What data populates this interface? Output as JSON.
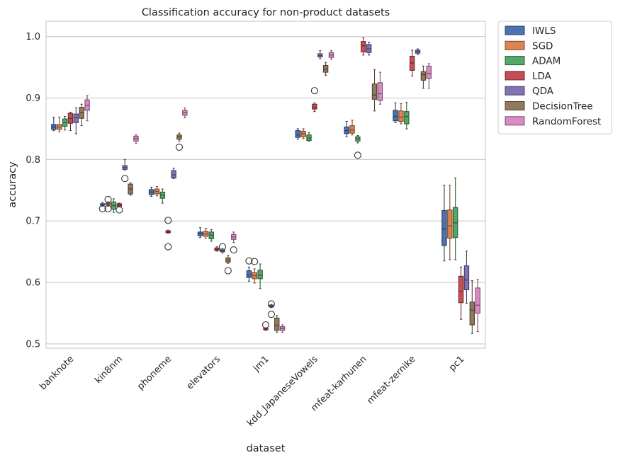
{
  "chart_data": {
    "type": "box",
    "title": "Classification accuracy for non-product datasets",
    "xlabel": "dataset",
    "ylabel": "accuracy",
    "ylim": [
      0.493,
      1.025
    ],
    "yticks": [
      "0.5",
      "0.6",
      "0.7",
      "0.8",
      "0.9",
      "1.0"
    ],
    "categories": [
      "banknote",
      "kin8nm",
      "phoneme",
      "elevators",
      "jm1",
      "kdd_JapaneseVowels",
      "mfeat-karhunen",
      "mfeat-zernike",
      "pc1"
    ],
    "grid": "horizontal",
    "legend_position": "outside-top-right",
    "series": [
      {
        "name": "IWLS",
        "color": "#4c72b0",
        "boxes": [
          {
            "cat": "banknote",
            "min": 0.847,
            "q1": 0.849,
            "median": 0.853,
            "q3": 0.857,
            "max": 0.869,
            "outliers": []
          },
          {
            "cat": "kin8nm",
            "min": 0.724,
            "q1": 0.726,
            "median": 0.727,
            "q3": 0.728,
            "max": 0.73,
            "outliers": [
              0.72
            ]
          },
          {
            "cat": "phoneme",
            "min": 0.74,
            "q1": 0.743,
            "median": 0.747,
            "q3": 0.751,
            "max": 0.755,
            "outliers": []
          },
          {
            "cat": "elevators",
            "min": 0.673,
            "q1": 0.676,
            "median": 0.679,
            "q3": 0.682,
            "max": 0.689,
            "outliers": []
          },
          {
            "cat": "jm1",
            "min": 0.602,
            "q1": 0.608,
            "median": 0.612,
            "q3": 0.619,
            "max": 0.625,
            "outliers": [
              0.635
            ]
          },
          {
            "cat": "kdd_JapaneseVowels",
            "min": 0.833,
            "q1": 0.836,
            "median": 0.84,
            "q3": 0.847,
            "max": 0.85,
            "outliers": []
          },
          {
            "cat": "mfeat-karhunen",
            "min": 0.837,
            "q1": 0.842,
            "median": 0.847,
            "q3": 0.853,
            "max": 0.862,
            "outliers": []
          },
          {
            "cat": "mfeat-zernike",
            "min": 0.86,
            "q1": 0.863,
            "median": 0.87,
            "q3": 0.88,
            "max": 0.892,
            "outliers": []
          },
          {
            "cat": "pc1",
            "min": 0.635,
            "q1": 0.66,
            "median": 0.687,
            "q3": 0.717,
            "max": 0.758,
            "outliers": []
          }
        ]
      },
      {
        "name": "SGD",
        "color": "#dd8452",
        "boxes": [
          {
            "cat": "banknote",
            "min": 0.845,
            "q1": 0.849,
            "median": 0.853,
            "q3": 0.857,
            "max": 0.869,
            "outliers": []
          },
          {
            "cat": "kin8nm",
            "min": 0.724,
            "q1": 0.726,
            "median": 0.728,
            "q3": 0.729,
            "max": 0.731,
            "outliers": [
              0.735,
              0.72
            ]
          },
          {
            "cat": "phoneme",
            "min": 0.741,
            "q1": 0.744,
            "median": 0.748,
            "q3": 0.752,
            "max": 0.756,
            "outliers": []
          },
          {
            "cat": "elevators",
            "min": 0.672,
            "q1": 0.675,
            "median": 0.679,
            "q3": 0.683,
            "max": 0.688,
            "outliers": []
          },
          {
            "cat": "jm1",
            "min": 0.599,
            "q1": 0.606,
            "median": 0.611,
            "q3": 0.616,
            "max": 0.622,
            "outliers": [
              0.634
            ]
          },
          {
            "cat": "kdd_JapaneseVowels",
            "min": 0.834,
            "q1": 0.837,
            "median": 0.842,
            "q3": 0.846,
            "max": 0.85,
            "outliers": []
          },
          {
            "cat": "mfeat-karhunen",
            "min": 0.84,
            "q1": 0.843,
            "median": 0.848,
            "q3": 0.855,
            "max": 0.864,
            "outliers": []
          },
          {
            "cat": "mfeat-zernike",
            "min": 0.858,
            "q1": 0.862,
            "median": 0.869,
            "q3": 0.879,
            "max": 0.891,
            "outliers": []
          },
          {
            "cat": "pc1",
            "min": 0.637,
            "q1": 0.672,
            "median": 0.692,
            "q3": 0.718,
            "max": 0.758,
            "outliers": []
          }
        ]
      },
      {
        "name": "ADAM",
        "color": "#55a868",
        "boxes": [
          {
            "cat": "banknote",
            "min": 0.848,
            "q1": 0.854,
            "median": 0.86,
            "q3": 0.866,
            "max": 0.87,
            "outliers": []
          },
          {
            "cat": "kin8nm",
            "min": 0.714,
            "q1": 0.719,
            "median": 0.725,
            "q3": 0.731,
            "max": 0.736,
            "outliers": []
          },
          {
            "cat": "phoneme",
            "min": 0.729,
            "q1": 0.737,
            "median": 0.742,
            "q3": 0.747,
            "max": 0.752,
            "outliers": []
          },
          {
            "cat": "elevators",
            "min": 0.667,
            "q1": 0.671,
            "median": 0.677,
            "q3": 0.682,
            "max": 0.686,
            "outliers": []
          },
          {
            "cat": "jm1",
            "min": 0.59,
            "q1": 0.606,
            "median": 0.612,
            "q3": 0.62,
            "max": 0.63,
            "outliers": []
          },
          {
            "cat": "kdd_JapaneseVowels",
            "min": 0.83,
            "q1": 0.831,
            "median": 0.835,
            "q3": 0.84,
            "max": 0.844,
            "outliers": []
          },
          {
            "cat": "mfeat-karhunen",
            "min": 0.827,
            "q1": 0.83,
            "median": 0.834,
            "q3": 0.837,
            "max": 0.839,
            "outliers": [
              0.807
            ]
          },
          {
            "cat": "mfeat-zernike",
            "min": 0.85,
            "q1": 0.858,
            "median": 0.87,
            "q3": 0.878,
            "max": 0.893,
            "outliers": []
          },
          {
            "cat": "pc1",
            "min": 0.637,
            "q1": 0.673,
            "median": 0.697,
            "q3": 0.722,
            "max": 0.77,
            "outliers": []
          }
        ]
      },
      {
        "name": "LDA",
        "color": "#c44e52",
        "boxes": [
          {
            "cat": "banknote",
            "min": 0.847,
            "q1": 0.859,
            "median": 0.867,
            "q3": 0.875,
            "max": 0.877,
            "outliers": []
          },
          {
            "cat": "kin8nm",
            "min": 0.723,
            "q1": 0.724,
            "median": 0.726,
            "q3": 0.728,
            "max": 0.729,
            "outliers": [
              0.718
            ]
          },
          {
            "cat": "phoneme",
            "min": 0.68,
            "q1": 0.681,
            "median": 0.682,
            "q3": 0.684,
            "max": 0.685,
            "outliers": [
              0.701,
              0.658
            ]
          },
          {
            "cat": "elevators",
            "min": 0.651,
            "q1": 0.652,
            "median": 0.654,
            "q3": 0.656,
            "max": 0.658,
            "outliers": []
          },
          {
            "cat": "jm1",
            "min": 0.522,
            "q1": 0.523,
            "median": 0.524,
            "q3": 0.525,
            "max": 0.526,
            "outliers": [
              0.531
            ]
          },
          {
            "cat": "kdd_JapaneseVowels",
            "min": 0.878,
            "q1": 0.882,
            "median": 0.885,
            "q3": 0.89,
            "max": 0.892,
            "outliers": [
              0.912
            ]
          },
          {
            "cat": "mfeat-karhunen",
            "min": 0.97,
            "q1": 0.975,
            "median": 0.985,
            "q3": 0.992,
            "max": 0.998,
            "outliers": []
          },
          {
            "cat": "mfeat-zernike",
            "min": 0.936,
            "q1": 0.945,
            "median": 0.957,
            "q3": 0.968,
            "max": 0.978,
            "outliers": []
          },
          {
            "cat": "pc1",
            "min": 0.54,
            "q1": 0.567,
            "median": 0.585,
            "q3": 0.61,
            "max": 0.625,
            "outliers": []
          }
        ]
      },
      {
        "name": "QDA",
        "color": "#8172b3",
        "boxes": [
          {
            "cat": "banknote",
            "min": 0.842,
            "q1": 0.86,
            "median": 0.868,
            "q3": 0.874,
            "max": 0.884,
            "outliers": []
          },
          {
            "cat": "kin8nm",
            "min": 0.783,
            "q1": 0.784,
            "median": 0.787,
            "q3": 0.79,
            "max": 0.8,
            "outliers": [
              0.769
            ]
          },
          {
            "cat": "phoneme",
            "min": 0.769,
            "q1": 0.77,
            "median": 0.775,
            "q3": 0.782,
            "max": 0.786,
            "outliers": []
          },
          {
            "cat": "elevators",
            "min": 0.648,
            "q1": 0.65,
            "median": 0.651,
            "q3": 0.653,
            "max": 0.655,
            "outliers": [
              0.658
            ]
          },
          {
            "cat": "jm1",
            "min": 0.559,
            "q1": 0.56,
            "median": 0.562,
            "q3": 0.563,
            "max": 0.564,
            "outliers": [
              0.548,
              0.565
            ]
          },
          {
            "cat": "kdd_JapaneseVowels",
            "min": 0.964,
            "q1": 0.967,
            "median": 0.969,
            "q3": 0.972,
            "max": 0.977,
            "outliers": []
          },
          {
            "cat": "mfeat-karhunen",
            "min": 0.97,
            "q1": 0.974,
            "median": 0.98,
            "q3": 0.987,
            "max": 0.991,
            "outliers": []
          },
          {
            "cat": "mfeat-zernike",
            "min": 0.971,
            "q1": 0.973,
            "median": 0.976,
            "q3": 0.978,
            "max": 0.98,
            "outliers": []
          },
          {
            "cat": "pc1",
            "min": 0.566,
            "q1": 0.588,
            "median": 0.604,
            "q3": 0.627,
            "max": 0.651,
            "outliers": []
          }
        ]
      },
      {
        "name": "DecisionTree",
        "color": "#937860",
        "boxes": [
          {
            "cat": "banknote",
            "min": 0.855,
            "q1": 0.867,
            "median": 0.876,
            "q3": 0.885,
            "max": 0.89,
            "outliers": []
          },
          {
            "cat": "kin8nm",
            "min": 0.742,
            "q1": 0.744,
            "median": 0.752,
            "q3": 0.76,
            "max": 0.762,
            "outliers": []
          },
          {
            "cat": "phoneme",
            "min": 0.83,
            "q1": 0.833,
            "median": 0.837,
            "q3": 0.84,
            "max": 0.843,
            "outliers": [
              0.82
            ]
          },
          {
            "cat": "elevators",
            "min": 0.631,
            "q1": 0.633,
            "median": 0.636,
            "q3": 0.64,
            "max": 0.644,
            "outliers": [
              0.619
            ]
          },
          {
            "cat": "jm1",
            "min": 0.519,
            "q1": 0.522,
            "median": 0.53,
            "q3": 0.542,
            "max": 0.546,
            "outliers": []
          },
          {
            "cat": "kdd_JapaneseVowels",
            "min": 0.937,
            "q1": 0.942,
            "median": 0.947,
            "q3": 0.953,
            "max": 0.958,
            "outliers": []
          },
          {
            "cat": "mfeat-karhunen",
            "min": 0.879,
            "q1": 0.898,
            "median": 0.905,
            "q3": 0.923,
            "max": 0.946,
            "outliers": []
          },
          {
            "cat": "mfeat-zernike",
            "min": 0.916,
            "q1": 0.929,
            "median": 0.938,
            "q3": 0.943,
            "max": 0.952,
            "outliers": []
          },
          {
            "cat": "pc1",
            "min": 0.517,
            "q1": 0.531,
            "median": 0.555,
            "q3": 0.568,
            "max": 0.603,
            "outliers": []
          }
        ]
      },
      {
        "name": "RandomForest",
        "color": "#da8bc3",
        "boxes": [
          {
            "cat": "banknote",
            "min": 0.863,
            "q1": 0.88,
            "median": 0.888,
            "q3": 0.897,
            "max": 0.904,
            "outliers": []
          },
          {
            "cat": "kin8nm",
            "min": 0.826,
            "q1": 0.83,
            "median": 0.834,
            "q3": 0.838,
            "max": 0.84,
            "outliers": []
          },
          {
            "cat": "phoneme",
            "min": 0.868,
            "q1": 0.872,
            "median": 0.876,
            "q3": 0.88,
            "max": 0.884,
            "outliers": []
          },
          {
            "cat": "elevators",
            "min": 0.665,
            "q1": 0.67,
            "median": 0.674,
            "q3": 0.678,
            "max": 0.682,
            "outliers": [
              0.653
            ]
          },
          {
            "cat": "jm1",
            "min": 0.519,
            "q1": 0.522,
            "median": 0.525,
            "q3": 0.528,
            "max": 0.531,
            "outliers": []
          },
          {
            "cat": "kdd_JapaneseVowels",
            "min": 0.963,
            "q1": 0.966,
            "median": 0.97,
            "q3": 0.974,
            "max": 0.977,
            "outliers": []
          },
          {
            "cat": "mfeat-karhunen",
            "min": 0.89,
            "q1": 0.896,
            "median": 0.907,
            "q3": 0.925,
            "max": 0.942,
            "outliers": []
          },
          {
            "cat": "mfeat-zernike",
            "min": 0.916,
            "q1": 0.932,
            "median": 0.94,
            "q3": 0.952,
            "max": 0.956,
            "outliers": []
          },
          {
            "cat": "pc1",
            "min": 0.52,
            "q1": 0.55,
            "median": 0.563,
            "q3": 0.591,
            "max": 0.605,
            "outliers": []
          }
        ]
      }
    ]
  }
}
